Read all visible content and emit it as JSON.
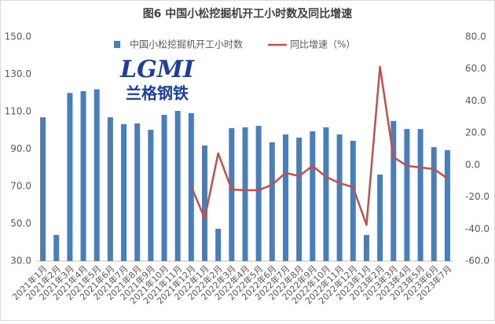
{
  "chart_data": {
    "type": "bar",
    "title": "图6 中国小松挖掘机开工小时数及同比增速",
    "watermark": {
      "logo": "LGMI",
      "text": "兰格钢铁"
    },
    "categories": [
      "2021年1月",
      "2021年2月",
      "2021年3月",
      "2021年4月",
      "2021年5月",
      "2021年6月",
      "2021年7月",
      "2021年8月",
      "2021年9月",
      "2021年10月",
      "2021年11月",
      "2021年12月",
      "2022年1月",
      "2022年2月",
      "2022年3月",
      "2022年4月",
      "2022年5月",
      "2022年6月",
      "2022年7月",
      "2022年8月",
      "2022年9月",
      "2022年10月",
      "2022年11月",
      "2022年12月",
      "2023年1月",
      "2023年2月",
      "2023年3月",
      "2023年4月",
      "2023年5月",
      "2023年6月",
      "2023年7月"
    ],
    "series": [
      {
        "name": "中国小松挖掘机开工小时数",
        "type": "bar",
        "color": "#4a7ebb",
        "values": [
          107,
          44,
          120,
          121,
          122,
          107,
          103.3,
          103.7,
          100.3,
          108.3,
          110.4,
          109.2,
          91.9,
          47.3,
          101.2,
          101.6,
          102.4,
          93.6,
          97.8,
          96.1,
          99.5,
          101.6,
          97.8,
          94.4,
          44,
          76.3,
          105,
          100.7,
          100.7,
          91,
          89.4
        ]
      },
      {
        "name": "同比增速（%）",
        "type": "line",
        "axis": "y2",
        "color": "#c0504d",
        "values": [
          null,
          null,
          null,
          null,
          null,
          null,
          null,
          null,
          null,
          null,
          null,
          -13.3,
          -33.4,
          7.3,
          -15.3,
          -15.7,
          -15.7,
          -12.3,
          -4.9,
          -6.9,
          -0.5,
          -7.4,
          -11.3,
          -13.8,
          -37.4,
          61.4,
          4.9,
          -0.5,
          -1.5,
          -2.5,
          -8.4
        ]
      }
    ],
    "ylim": [
      30,
      150
    ],
    "yticks": [
      {
        "value": 30,
        "label": "30.0"
      },
      {
        "value": 50,
        "label": "50.0"
      },
      {
        "value": 70,
        "label": "70.0"
      },
      {
        "value": 90,
        "label": "90.0"
      },
      {
        "value": 110,
        "label": "110.0"
      },
      {
        "value": 130,
        "label": "130.0"
      },
      {
        "value": 150,
        "label": "150.0"
      }
    ],
    "y2lim": [
      -60,
      80
    ],
    "y2ticks": [
      {
        "value": -60,
        "label": "-60.0"
      },
      {
        "value": -40,
        "label": "-40.0"
      },
      {
        "value": -20,
        "label": "-20.0"
      },
      {
        "value": 0,
        "label": "0.0"
      },
      {
        "value": 20,
        "label": "20.0"
      },
      {
        "value": 40,
        "label": "40.0"
      },
      {
        "value": 60,
        "label": "60.0"
      },
      {
        "value": 80,
        "label": "80.0"
      }
    ],
    "grid": false,
    "legend": "top"
  }
}
